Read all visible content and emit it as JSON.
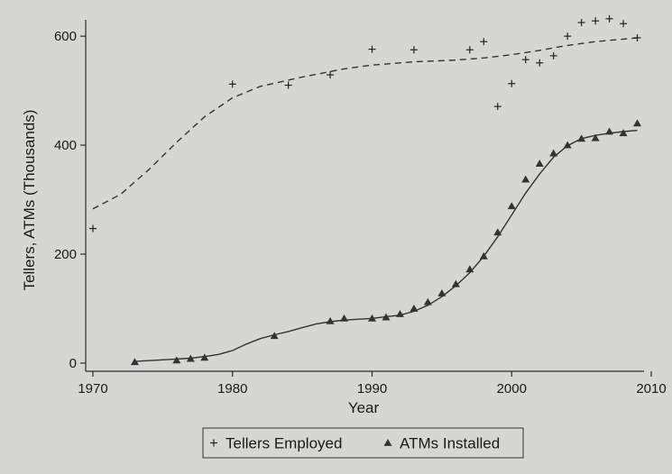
{
  "chart_data": {
    "type": "scatter",
    "xlabel": "Year",
    "ylabel": "Tellers, ATMs (Thousands)",
    "xlim": [
      1970,
      2010
    ],
    "ylim": [
      -15,
      630
    ],
    "xticks": [
      1970,
      1980,
      1990,
      2000,
      2010
    ],
    "yticks": [
      0,
      200,
      400,
      600
    ],
    "grid": false,
    "legend_position": "bottom",
    "series": [
      {
        "name": "Tellers Employed",
        "marker": "plus",
        "points": [
          [
            1970,
            247
          ],
          [
            1980,
            512
          ],
          [
            1984,
            510
          ],
          [
            1987,
            529
          ],
          [
            1990,
            576
          ],
          [
            1993,
            575
          ],
          [
            1997,
            575
          ],
          [
            1998,
            590
          ],
          [
            1999,
            471
          ],
          [
            2000,
            513
          ],
          [
            2001,
            557
          ],
          [
            2002,
            551
          ],
          [
            2003,
            564
          ],
          [
            2004,
            600
          ],
          [
            2005,
            625
          ],
          [
            2006,
            628
          ],
          [
            2007,
            632
          ],
          [
            2008,
            623
          ],
          [
            2009,
            597
          ]
        ]
      },
      {
        "name": "ATMs Installed",
        "marker": "triangle",
        "points": [
          [
            1973,
            2
          ],
          [
            1976,
            5
          ],
          [
            1977,
            8
          ],
          [
            1978,
            10
          ],
          [
            1983,
            50
          ],
          [
            1987,
            77
          ],
          [
            1988,
            82
          ],
          [
            1990,
            82
          ],
          [
            1991,
            84
          ],
          [
            1992,
            90
          ],
          [
            1993,
            100
          ],
          [
            1994,
            112
          ],
          [
            1995,
            128
          ],
          [
            1996,
            145
          ],
          [
            1997,
            172
          ],
          [
            1998,
            196
          ],
          [
            1999,
            240
          ],
          [
            2000,
            288
          ],
          [
            2001,
            337
          ],
          [
            2002,
            366
          ],
          [
            2003,
            385
          ],
          [
            2004,
            400
          ],
          [
            2005,
            412
          ],
          [
            2006,
            413
          ],
          [
            2007,
            425
          ],
          [
            2008,
            422
          ],
          [
            2009,
            440
          ]
        ]
      }
    ],
    "fits": [
      {
        "series": "Tellers Employed",
        "style": "dashed",
        "points": [
          [
            1970,
            283
          ],
          [
            1972,
            310
          ],
          [
            1974,
            355
          ],
          [
            1976,
            405
          ],
          [
            1978,
            452
          ],
          [
            1980,
            487
          ],
          [
            1982,
            508
          ],
          [
            1985,
            525
          ],
          [
            1988,
            540
          ],
          [
            1990,
            547
          ],
          [
            1993,
            553
          ],
          [
            1996,
            556
          ],
          [
            1998,
            560
          ],
          [
            2000,
            566
          ],
          [
            2002,
            574
          ],
          [
            2004,
            583
          ],
          [
            2006,
            590
          ],
          [
            2009,
            597
          ]
        ]
      },
      {
        "series": "ATMs Installed",
        "style": "solid",
        "points": [
          [
            1973,
            3
          ],
          [
            1975,
            6
          ],
          [
            1977,
            9
          ],
          [
            1978,
            12
          ],
          [
            1979,
            16
          ],
          [
            1980,
            23
          ],
          [
            1981,
            35
          ],
          [
            1982,
            45
          ],
          [
            1983,
            52
          ],
          [
            1984,
            58
          ],
          [
            1985,
            65
          ],
          [
            1986,
            72
          ],
          [
            1987,
            76
          ],
          [
            1988,
            79
          ],
          [
            1990,
            82
          ],
          [
            1992,
            88
          ],
          [
            1993,
            95
          ],
          [
            1994,
            106
          ],
          [
            1995,
            122
          ],
          [
            1996,
            142
          ],
          [
            1997,
            166
          ],
          [
            1998,
            196
          ],
          [
            1999,
            232
          ],
          [
            2000,
            272
          ],
          [
            2001,
            312
          ],
          [
            2002,
            347
          ],
          [
            2003,
            378
          ],
          [
            2004,
            399
          ],
          [
            2005,
            412
          ],
          [
            2006,
            418
          ],
          [
            2007,
            422
          ],
          [
            2008,
            425
          ],
          [
            2009,
            427
          ]
        ]
      }
    ],
    "annotations": []
  }
}
